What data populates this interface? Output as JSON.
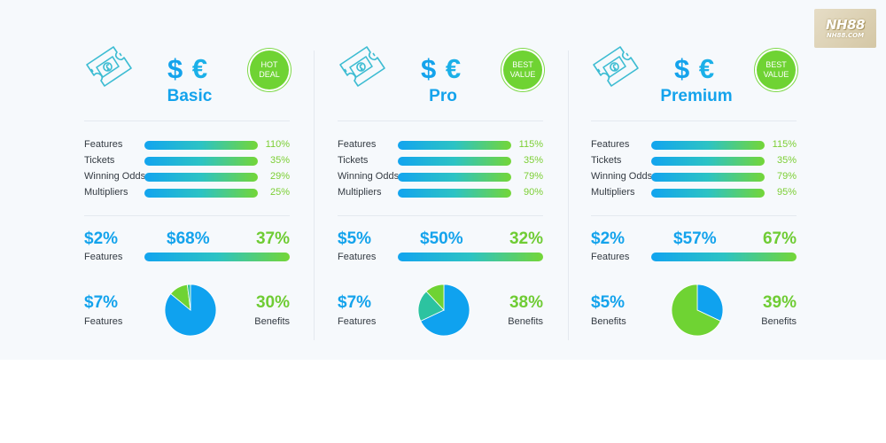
{
  "logo": {
    "line1": "NH88",
    "line2": "NH88.COM"
  },
  "plans": [
    {
      "name": "Basic",
      "currency_symbol_1": "$",
      "currency_symbol_2": "€",
      "badge": "HOT DEAL",
      "metrics": [
        {
          "label": "Features",
          "value": "110%"
        },
        {
          "label": "Tickets",
          "value": "35%"
        },
        {
          "label": "Winning Odds",
          "value": "29%"
        },
        {
          "label": "Multipliers",
          "value": "25%"
        }
      ],
      "stats_row1": {
        "left": "$2%",
        "middle": "$68%",
        "right": "37%",
        "label": "Features"
      },
      "stats_row2": {
        "left": "$7%",
        "left_label": "Features",
        "right": "30%",
        "right_label": "Benefits"
      },
      "pie": {
        "slices": [
          {
            "fraction": 0.86,
            "color": "#0fa2ef"
          },
          {
            "fraction": 0.12,
            "color": "#6fd333"
          },
          {
            "fraction": 0.02,
            "color": "#2cc3a0"
          }
        ]
      }
    },
    {
      "name": "Pro",
      "currency_symbol_1": "$",
      "currency_symbol_2": "€",
      "badge": "BEST VALUE",
      "metrics": [
        {
          "label": "Features",
          "value": "115%"
        },
        {
          "label": "Tickets",
          "value": "35%"
        },
        {
          "label": "Winning Odds",
          "value": "79%"
        },
        {
          "label": "Multipliers",
          "value": "90%"
        }
      ],
      "stats_row1": {
        "left": "$5%",
        "middle": "$50%",
        "right": "32%",
        "label": "Features"
      },
      "stats_row2": {
        "left": "$7%",
        "left_label": "Features",
        "right": "38%",
        "right_label": "Benefits"
      },
      "pie": {
        "slices": [
          {
            "fraction": 0.68,
            "color": "#0fa2ef"
          },
          {
            "fraction": 0.2,
            "color": "#2cc3a0"
          },
          {
            "fraction": 0.12,
            "color": "#6fd333"
          }
        ]
      }
    },
    {
      "name": "Premium",
      "currency_symbol_1": "$",
      "currency_symbol_2": "€",
      "badge": "BEST VALUE",
      "metrics": [
        {
          "label": "Features",
          "value": "115%"
        },
        {
          "label": "Tickets",
          "value": "35%"
        },
        {
          "label": "Winning Odds",
          "value": "79%"
        },
        {
          "label": "Multipliers",
          "value": "95%"
        }
      ],
      "stats_row1": {
        "left": "$2%",
        "middle": "$57%",
        "right": "67%",
        "label": "Features"
      },
      "stats_row2": {
        "left": "$5%",
        "left_label": "Benefits",
        "right": "39%",
        "right_label": "Benefits"
      },
      "pie": {
        "slices": [
          {
            "fraction": 0.32,
            "color": "#0fa2ef"
          },
          {
            "fraction": 0.68,
            "color": "#6fd333"
          }
        ]
      }
    }
  ]
}
